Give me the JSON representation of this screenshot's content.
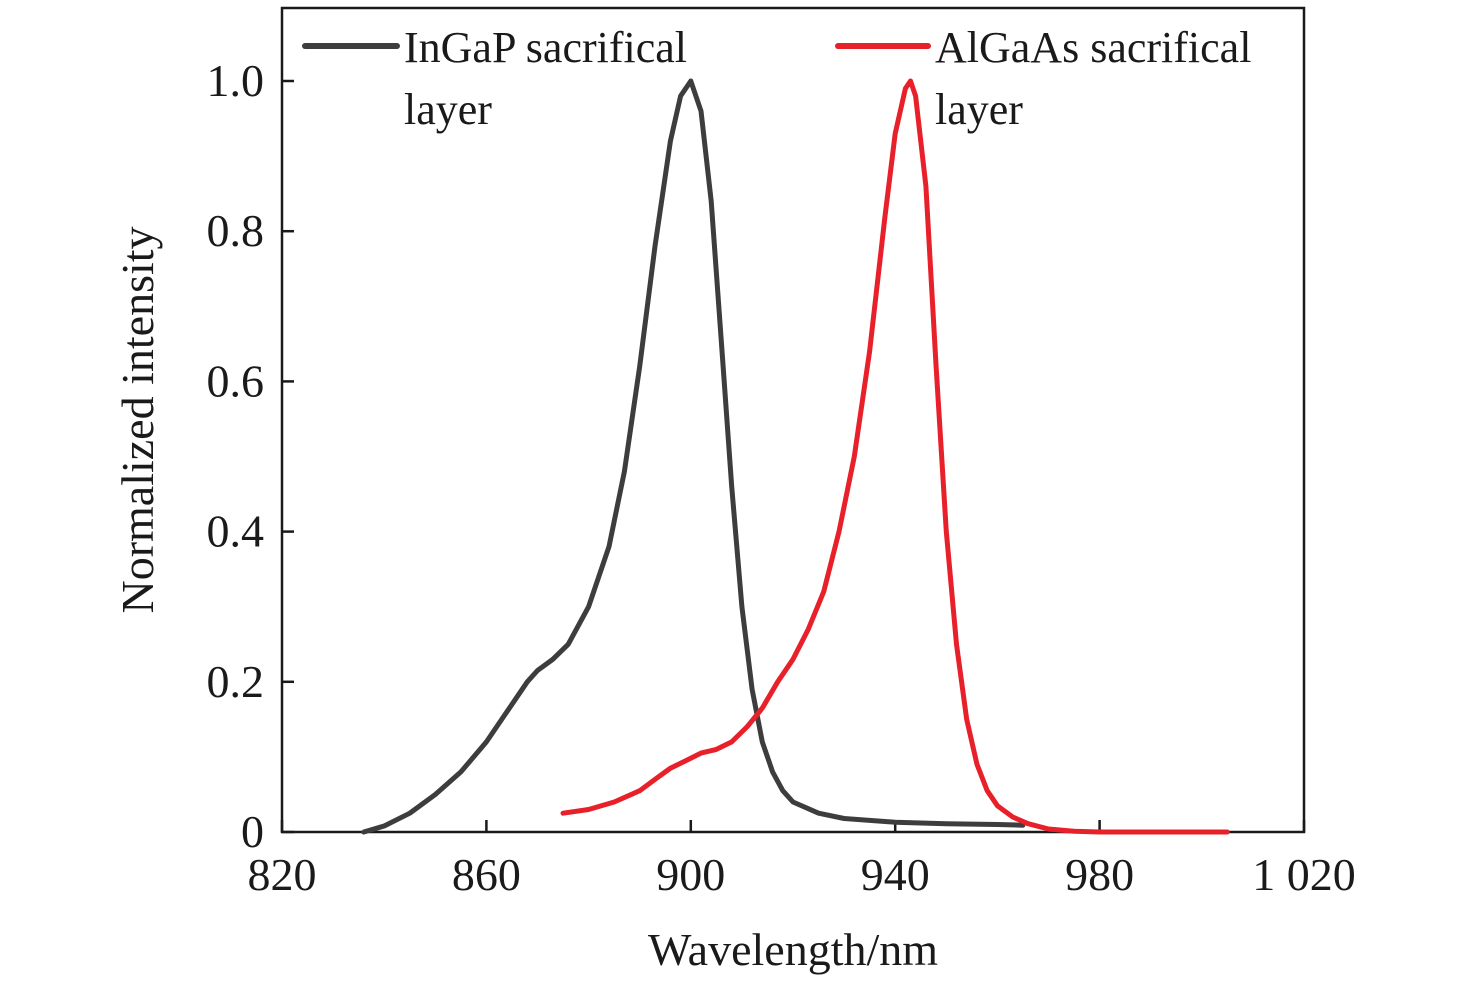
{
  "chart_data": {
    "type": "line",
    "xlabel": "Wavelength/nm",
    "ylabel": "Normalized intensity",
    "xlim": [
      820,
      1020
    ],
    "ylim": [
      0,
      1.1
    ],
    "xticks": [
      820,
      860,
      900,
      940,
      980,
      1020
    ],
    "xtick_labels": [
      "820",
      "860",
      "900",
      "940",
      "980",
      "1 020"
    ],
    "yticks": [
      0,
      0.2,
      0.4,
      0.6,
      0.8,
      1.0
    ],
    "ytick_labels": [
      "0",
      "0.2",
      "0.4",
      "0.6",
      "0.8",
      "1.0"
    ],
    "grid": false,
    "legend_position": "top",
    "series": [
      {
        "name": "InGaP sacrifical layer",
        "legend_lines": [
          "InGaP sacrifical",
          "layer"
        ],
        "color": "#3d3d3d",
        "x": [
          836,
          840,
          845,
          850,
          855,
          860,
          863,
          866,
          868,
          870,
          873,
          876,
          880,
          884,
          887,
          890,
          893,
          896,
          898,
          900,
          902,
          904,
          906,
          908,
          910,
          912,
          914,
          916,
          918,
          920,
          925,
          930,
          940,
          950,
          960,
          965
        ],
        "y": [
          0.0,
          0.008,
          0.025,
          0.05,
          0.08,
          0.12,
          0.15,
          0.18,
          0.2,
          0.215,
          0.23,
          0.25,
          0.3,
          0.38,
          0.48,
          0.62,
          0.78,
          0.92,
          0.98,
          1.0,
          0.96,
          0.84,
          0.65,
          0.46,
          0.3,
          0.19,
          0.12,
          0.08,
          0.055,
          0.04,
          0.025,
          0.018,
          0.013,
          0.011,
          0.01,
          0.009
        ]
      },
      {
        "name": "AlGaAs sacrifical layer",
        "legend_lines": [
          "AlGaAs sacrifical",
          "layer"
        ],
        "color": "#e8202a",
        "x": [
          875,
          880,
          885,
          890,
          893,
          896,
          899,
          902,
          905,
          908,
          911,
          914,
          917,
          920,
          923,
          926,
          929,
          932,
          935,
          938,
          940,
          942,
          943,
          944,
          946,
          948,
          950,
          952,
          954,
          956,
          958,
          960,
          963,
          966,
          970,
          975,
          980,
          990,
          1000,
          1005
        ],
        "y": [
          0.025,
          0.03,
          0.04,
          0.055,
          0.07,
          0.085,
          0.095,
          0.105,
          0.11,
          0.12,
          0.14,
          0.165,
          0.2,
          0.23,
          0.27,
          0.32,
          0.4,
          0.5,
          0.64,
          0.82,
          0.93,
          0.99,
          1.0,
          0.98,
          0.86,
          0.62,
          0.4,
          0.25,
          0.15,
          0.09,
          0.055,
          0.035,
          0.02,
          0.011,
          0.004,
          0.001,
          0.0,
          0.0,
          0.0,
          0.0
        ]
      }
    ]
  }
}
